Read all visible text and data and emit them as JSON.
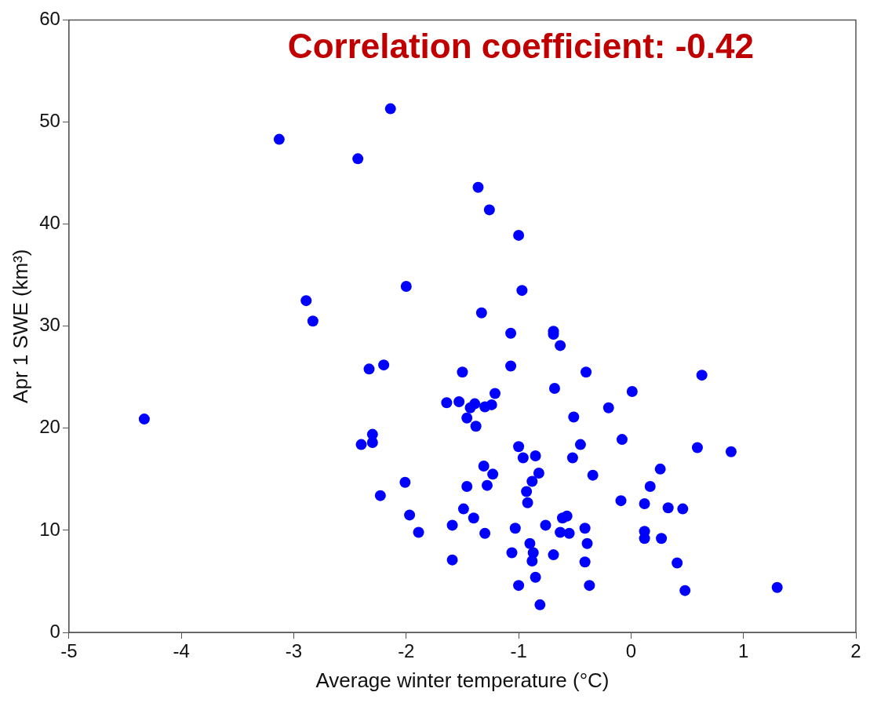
{
  "chart_data": {
    "type": "scatter",
    "xlabel": "Average winter temperature (°C)",
    "ylabel": "Apr 1 SWE (km³)",
    "annotations": [
      "Correlation coefficient: -0.42"
    ],
    "x": [
      -4.33,
      -3.13,
      -2.43,
      -2.14,
      -2.89,
      -2.83,
      -2.0,
      -2.33,
      -2.2,
      -2.3,
      -2.3,
      -2.4,
      -2.01,
      -2.23,
      -1.97,
      -1.89,
      -1.59,
      -1.59,
      -1.36,
      -1.26,
      -1.0,
      -0.97,
      -1.33,
      -1.07,
      -0.69,
      -0.69,
      -0.63,
      -1.07,
      -1.5,
      -0.4,
      0.63,
      -0.68,
      0.01,
      -1.21,
      -1.64,
      -1.53,
      -1.39,
      -1.43,
      -1.3,
      -1.24,
      -0.2,
      -1.46,
      -0.51,
      -1.38,
      -0.08,
      -0.45,
      -1.0,
      0.59,
      0.89,
      -0.96,
      -0.85,
      -0.52,
      -1.31,
      0.26,
      -1.23,
      -0.82,
      -0.34,
      -0.88,
      -1.46,
      -1.28,
      0.17,
      -0.93,
      -0.92,
      -0.09,
      0.12,
      0.33,
      0.46,
      -1.49,
      -1.4,
      -1.3,
      -1.03,
      -0.76,
      -0.61,
      -0.57,
      -0.63,
      -0.55,
      -0.41,
      0.12,
      0.12,
      0.27,
      -0.9,
      -0.39,
      -1.06,
      -0.87,
      -0.88,
      -0.69,
      -0.41,
      0.41,
      -0.85,
      -1.0,
      -0.37,
      0.48,
      1.3,
      -0.81
    ],
    "values": [
      20.9,
      48.3,
      46.4,
      51.3,
      32.5,
      30.5,
      33.9,
      25.8,
      26.2,
      19.4,
      18.6,
      18.4,
      14.7,
      13.4,
      11.5,
      9.8,
      10.5,
      7.1,
      43.6,
      41.4,
      38.9,
      33.5,
      31.3,
      29.3,
      29.5,
      29.2,
      28.1,
      26.1,
      25.5,
      25.5,
      25.2,
      23.9,
      23.6,
      23.4,
      22.5,
      22.6,
      22.4,
      22.0,
      22.1,
      22.3,
      22.0,
      21.0,
      21.1,
      20.2,
      18.9,
      18.4,
      18.2,
      18.1,
      17.7,
      17.1,
      17.3,
      17.1,
      16.3,
      16.0,
      15.5,
      15.6,
      15.4,
      14.8,
      14.3,
      14.4,
      14.3,
      13.8,
      12.7,
      12.9,
      12.6,
      12.2,
      12.1,
      12.1,
      11.2,
      9.7,
      10.2,
      10.5,
      11.2,
      11.4,
      9.8,
      9.7,
      10.2,
      9.9,
      9.2,
      9.2,
      8.7,
      8.7,
      7.8,
      7.8,
      7.0,
      7.6,
      6.9,
      6.8,
      5.4,
      4.6,
      4.6,
      4.1,
      4.4,
      2.7
    ],
    "color": "#0000ff",
    "marker": "circle",
    "xlim": [
      -5,
      2
    ],
    "xticks": [
      -5,
      -4,
      -3,
      -2,
      -1,
      0,
      1,
      2
    ],
    "ylim": [
      0,
      60
    ],
    "yticks": [
      0,
      10,
      20,
      30,
      40,
      50,
      60
    ],
    "grid": false,
    "legend": false
  }
}
